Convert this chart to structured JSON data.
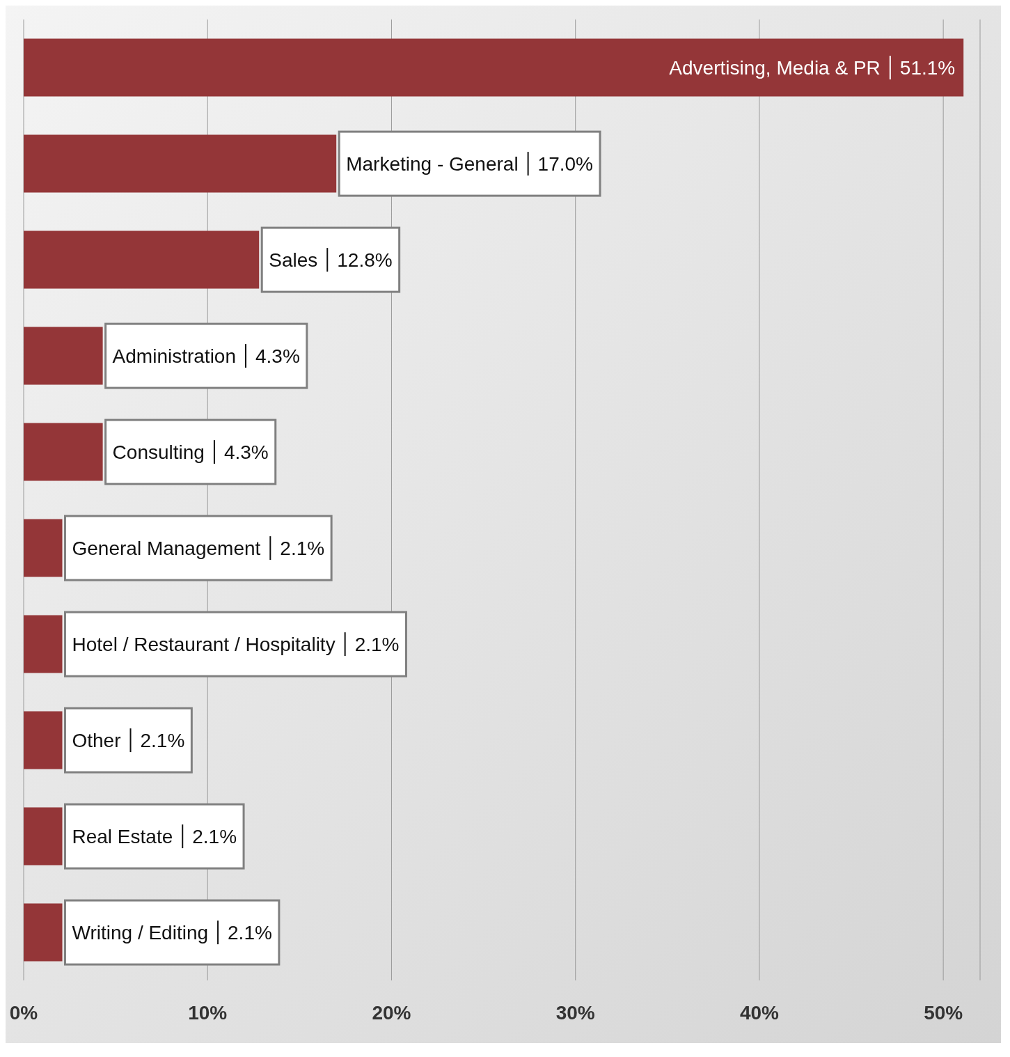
{
  "chart_data": {
    "type": "bar",
    "orientation": "horizontal",
    "categories": [
      "Advertising, Media & PR",
      "Marketing - General",
      "Sales",
      "Administration",
      "Consulting",
      "General Management",
      "Hotel / Restaurant / Hospitality",
      "Other",
      "Real Estate",
      "Writing / Editing"
    ],
    "values": [
      51.1,
      17.0,
      12.8,
      4.3,
      4.3,
      2.1,
      2.1,
      2.1,
      2.1,
      2.1
    ],
    "value_labels": [
      "51.1%",
      "17.0%",
      "12.8%",
      "4.3%",
      "4.3%",
      "2.1%",
      "2.1%",
      "2.1%",
      "2.1%",
      "2.1%"
    ],
    "color": "#943638",
    "xlim": [
      0,
      52
    ],
    "xticks": [
      {
        "value": 0,
        "label": "0%"
      },
      {
        "value": 10,
        "label": "10%"
      },
      {
        "value": 20,
        "label": "20%"
      },
      {
        "value": 30,
        "label": "30%"
      },
      {
        "value": 40,
        "label": "40%"
      },
      {
        "value": 50,
        "label": "50%"
      }
    ],
    "grid": "x",
    "tick_labels": "x"
  }
}
